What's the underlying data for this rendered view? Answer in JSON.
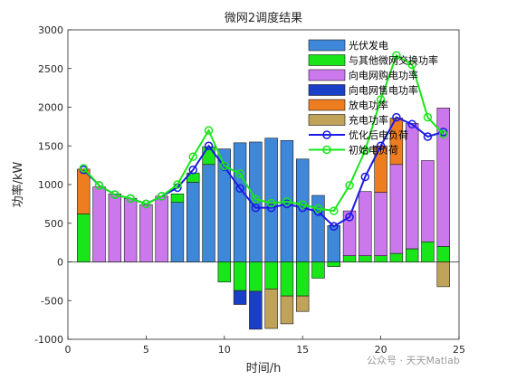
{
  "chart_data": {
    "type": "bar",
    "title": "微网2调度结果",
    "xlabel": "时间/h",
    "ylabel": "功率/kW",
    "xlim": [
      0,
      25
    ],
    "ylim": [
      -1000,
      3000
    ],
    "xticks": [
      0,
      5,
      10,
      15,
      20,
      25
    ],
    "yticks": [
      -1000,
      -500,
      0,
      500,
      1000,
      1500,
      2000,
      2500,
      3000
    ],
    "legend_position": "top-right",
    "x": [
      1,
      2,
      3,
      4,
      5,
      6,
      7,
      8,
      9,
      10,
      11,
      12,
      13,
      14,
      15,
      16,
      17,
      18,
      19,
      20,
      21,
      22,
      23,
      24
    ],
    "stacked_series": [
      {
        "name": "光伏发电",
        "color": "#3f87d8",
        "values": [
          0,
          0,
          0,
          0,
          0,
          0,
          770,
          1030,
          1260,
          1460,
          1540,
          1550,
          1600,
          1570,
          1330,
          860,
          470,
          0,
          0,
          0,
          0,
          0,
          0,
          0
        ]
      },
      {
        "name": "与其他微网交换功率",
        "color": "#19e619",
        "values": [
          620,
          0,
          0,
          0,
          0,
          0,
          110,
          120,
          230,
          -260,
          -370,
          -380,
          -350,
          -440,
          -440,
          -210,
          -60,
          80,
          80,
          80,
          110,
          170,
          260,
          200
        ]
      },
      {
        "name": "向电网购电功率",
        "color": "#cb78ed",
        "values": [
          0,
          970,
          880,
          820,
          740,
          850,
          0,
          0,
          0,
          0,
          0,
          0,
          0,
          0,
          0,
          0,
          0,
          580,
          830,
          820,
          1150,
          1620,
          1050,
          1790
        ]
      },
      {
        "name": "向电网售电功率",
        "color": "#1a3fc7",
        "values": [
          0,
          0,
          0,
          0,
          0,
          0,
          0,
          0,
          0,
          0,
          -180,
          -490,
          0,
          0,
          0,
          0,
          0,
          0,
          0,
          0,
          0,
          0,
          0,
          0
        ]
      },
      {
        "name": "放电功率",
        "color": "#ed7d1f",
        "values": [
          580,
          0,
          0,
          0,
          0,
          0,
          0,
          0,
          0,
          0,
          0,
          0,
          0,
          0,
          0,
          0,
          0,
          0,
          0,
          600,
          600,
          0,
          0,
          0
        ]
      },
      {
        "name": "充电功率",
        "color": "#c0a25a",
        "values": [
          0,
          0,
          0,
          0,
          0,
          0,
          0,
          0,
          0,
          0,
          0,
          0,
          -510,
          -360,
          -200,
          0,
          0,
          0,
          0,
          0,
          0,
          0,
          0,
          -320
        ]
      }
    ],
    "line_series": [
      {
        "name": "优化后电负荷",
        "color": "#1a1ae6",
        "values": [
          1190,
          990,
          870,
          820,
          750,
          850,
          960,
          1190,
          1500,
          1230,
          950,
          700,
          700,
          750,
          700,
          650,
          460,
          580,
          1100,
          1500,
          1870,
          1780,
          1620,
          1680
        ]
      },
      {
        "name": "初始电负荷",
        "color": "#19e619",
        "values": [
          1210,
          990,
          870,
          820,
          750,
          850,
          1000,
          1360,
          1700,
          1240,
          1140,
          810,
          760,
          780,
          740,
          690,
          660,
          990,
          1440,
          2100,
          2670,
          2550,
          1870,
          1650
        ]
      }
    ]
  },
  "watermark": "公众号 · 天天Matlab"
}
